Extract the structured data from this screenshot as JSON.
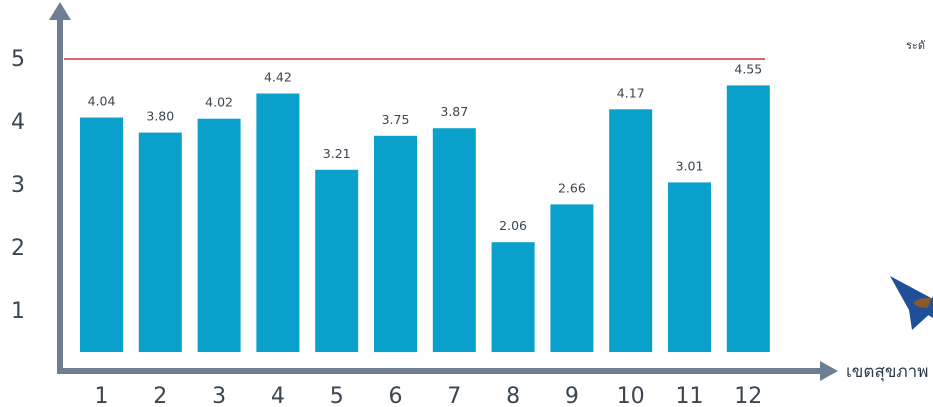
{
  "chart_data": {
    "type": "bar",
    "categories": [
      "1",
      "2",
      "3",
      "4",
      "5",
      "6",
      "7",
      "8",
      "9",
      "10",
      "11",
      "12"
    ],
    "values": [
      4.04,
      3.8,
      4.02,
      4.42,
      3.21,
      3.75,
      3.87,
      2.06,
      2.66,
      4.17,
      3.01,
      4.55
    ],
    "value_labels": [
      "4.04",
      "3.80",
      "4.02",
      "4.42",
      "3.21",
      "3.75",
      "3.87",
      "2.06",
      "2.66",
      "4.17",
      "3.01",
      "4.55"
    ],
    "yticks": [
      "1",
      "2",
      "3",
      "4",
      "5"
    ],
    "ylim": [
      0,
      5.7
    ],
    "reference_line": 5,
    "xlabel": "เขตสุขภาพ",
    "legend_fragment": "ระดั",
    "bar_color": "#0aa0cc",
    "axis_color": "#6e7f93",
    "reference_color": "#c8373a",
    "grid": false
  },
  "logo": {
    "colors": [
      "#1f4f97",
      "#8a5a2e"
    ]
  }
}
